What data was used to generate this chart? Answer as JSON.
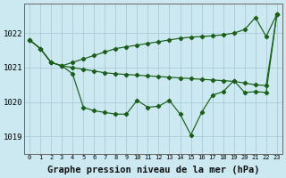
{
  "background_color": "#cce8f0",
  "grid_color": "#aaccd8",
  "line_color": "#1a5e1a",
  "marker_color": "#1a5e1a",
  "xlabel": "Graphe pression niveau de la mer (hPa)",
  "xlabel_fontsize": 7.5,
  "yticks": [
    1019,
    1020,
    1021,
    1022
  ],
  "xlim": [
    -0.5,
    23.5
  ],
  "ylim": [
    1018.5,
    1022.85
  ],
  "xticks": [
    0,
    1,
    2,
    3,
    4,
    5,
    6,
    7,
    8,
    9,
    10,
    11,
    12,
    13,
    14,
    15,
    16,
    17,
    18,
    19,
    20,
    21,
    22,
    23
  ],
  "line1_x": [
    0,
    1,
    2,
    3,
    4,
    5,
    6,
    7,
    8,
    9,
    10,
    11,
    12,
    13,
    14,
    15,
    16,
    17,
    18,
    19,
    20,
    21,
    22,
    23
  ],
  "line1_y": [
    1021.8,
    1021.55,
    1021.15,
    1021.05,
    1021.15,
    1021.25,
    1021.35,
    1021.45,
    1021.55,
    1021.6,
    1021.65,
    1021.7,
    1021.75,
    1021.8,
    1021.85,
    1021.88,
    1021.9,
    1021.92,
    1021.95,
    1022.0,
    1022.1,
    1022.45,
    1021.9,
    1022.55
  ],
  "line2_x": [
    0,
    1,
    2,
    3,
    4,
    5,
    6,
    7,
    8,
    9,
    10,
    11,
    12,
    13,
    14,
    15,
    16,
    17,
    18,
    19,
    20,
    21,
    22,
    23
  ],
  "line2_y": [
    1021.8,
    1021.55,
    1021.15,
    1021.05,
    1021.0,
    1020.95,
    1020.9,
    1020.85,
    1020.82,
    1020.8,
    1020.78,
    1020.76,
    1020.74,
    1020.72,
    1020.7,
    1020.68,
    1020.66,
    1020.64,
    1020.62,
    1020.6,
    1020.55,
    1020.5,
    1020.48,
    1022.55
  ],
  "line3_x": [
    0,
    1,
    2,
    3,
    4,
    5,
    6,
    7,
    8,
    9,
    10,
    11,
    12,
    13,
    14,
    15,
    16,
    17,
    18,
    19,
    20,
    21,
    22,
    23
  ],
  "line3_y": [
    1021.8,
    1021.55,
    1021.15,
    1021.05,
    1020.82,
    1019.85,
    1019.75,
    1019.7,
    1019.65,
    1019.65,
    1020.05,
    1019.85,
    1019.88,
    1020.05,
    1019.65,
    1019.05,
    1019.7,
    1020.2,
    1020.3,
    1020.62,
    1020.28,
    1020.3,
    1020.28,
    1022.55
  ]
}
